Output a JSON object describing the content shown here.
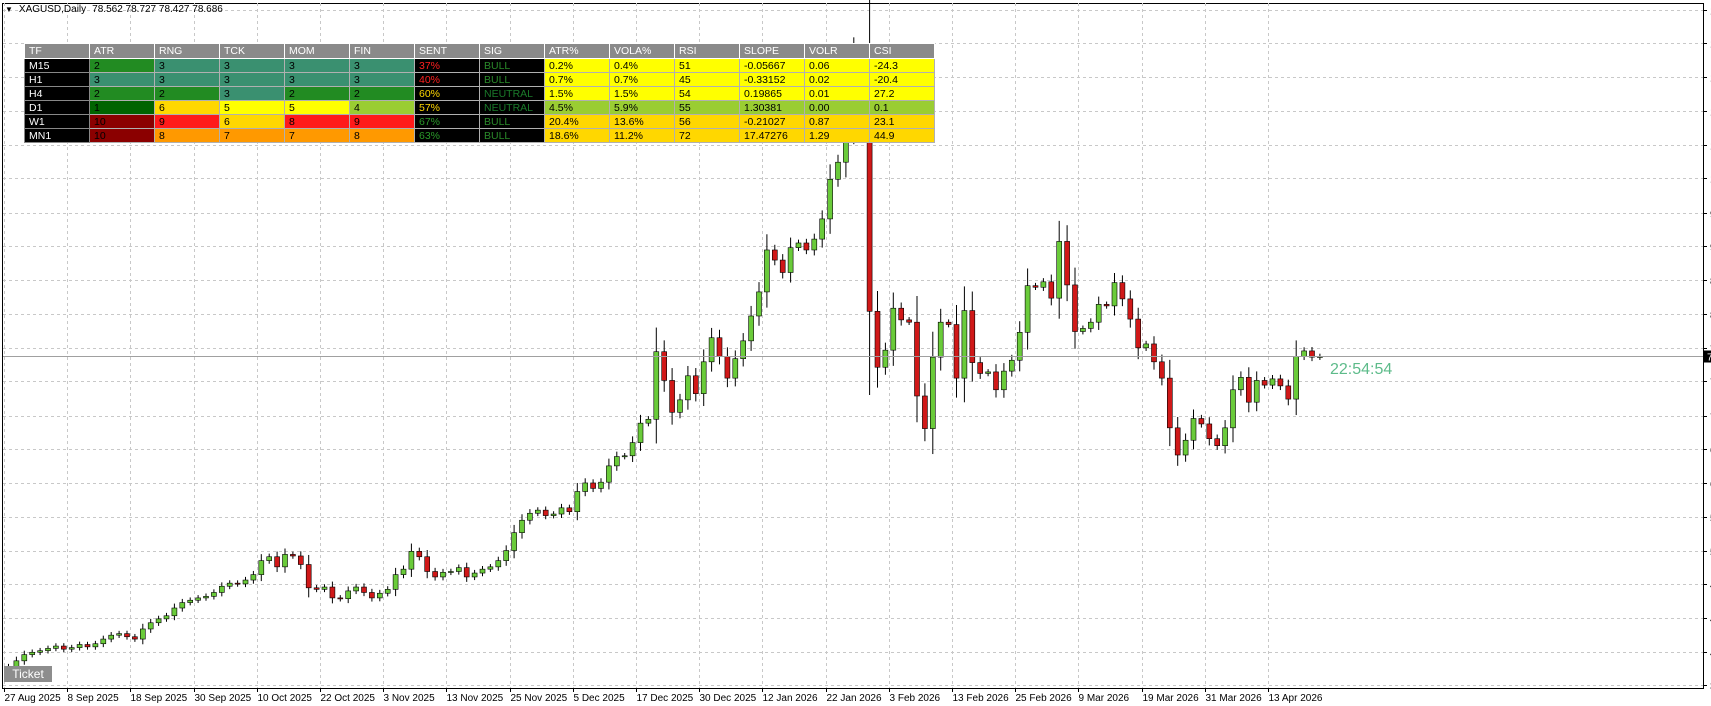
{
  "header": {
    "symbol": "XAGUSD,Daily",
    "ohlc": "78.562 78.727 78.427 78.686"
  },
  "timer": "22:54:54",
  "ticket_label": "Ticket",
  "colors": {
    "bull": "#6acb3a",
    "bear": "#d01818",
    "wick": "#000000",
    "grid": "#c8c8c8",
    "price_line": "#a0a0a0",
    "price_tag_bg": "#000000",
    "dark_green": "#006400",
    "green": "#1a8a1a",
    "teal": "#3a9070",
    "yellow": "#ffff00",
    "orange": "#ff9900",
    "red": "#ff1a1a",
    "dark_red": "#8b0000",
    "gold": "#ffd700",
    "olive": "#9acd32"
  },
  "indicator_table": {
    "headers": [
      "TF",
      "ATR",
      "RNG",
      "TCK",
      "MOM",
      "FIN",
      "SENT",
      "SIG",
      "ATR%",
      "VOLA%",
      "RSI",
      "SLOPE",
      "VOLR",
      "CSI"
    ],
    "rows": [
      {
        "cells": [
          "M15",
          "2",
          "3",
          "3",
          "3",
          "3",
          "37%",
          "BULL",
          "0.2%",
          "0.4%",
          "51",
          "-0.05667",
          "0.06",
          "-24.3"
        ],
        "bg": [
          "#000000",
          "#228b22",
          "#3a9070",
          "#3a9070",
          "#3a9070",
          "#3a9070",
          "#000000",
          "#000000",
          "#ffff00",
          "#ffff00",
          "#ffff00",
          "#ffff00",
          "#ffff00",
          "#ffff00"
        ],
        "fg": [
          "#ffffff",
          "#000000",
          "#000000",
          "#000000",
          "#000000",
          "#000000",
          "#ff2020",
          "#2a8a2a",
          "#000000",
          "#000000",
          "#000000",
          "#000000",
          "#000000",
          "#000000"
        ]
      },
      {
        "cells": [
          "H1",
          "3",
          "3",
          "3",
          "3",
          "3",
          "40%",
          "BULL",
          "0.7%",
          "0.7%",
          "45",
          "-0.33152",
          "0.02",
          "-20.4"
        ],
        "bg": [
          "#000000",
          "#3a9070",
          "#3a9070",
          "#3a9070",
          "#3a9070",
          "#3a9070",
          "#000000",
          "#000000",
          "#ffff00",
          "#ffff00",
          "#ffff00",
          "#ffff00",
          "#ffff00",
          "#ffff00"
        ],
        "fg": [
          "#ffffff",
          "#000000",
          "#000000",
          "#000000",
          "#000000",
          "#000000",
          "#ff2020",
          "#2a8a2a",
          "#000000",
          "#000000",
          "#000000",
          "#000000",
          "#000000",
          "#000000"
        ]
      },
      {
        "cells": [
          "H4",
          "2",
          "2",
          "3",
          "2",
          "2",
          "60%",
          "NEUTRAL",
          "1.5%",
          "1.5%",
          "54",
          "0.19865",
          "0.01",
          "27.2"
        ],
        "bg": [
          "#000000",
          "#228b22",
          "#228b22",
          "#3a9070",
          "#228b22",
          "#228b22",
          "#000000",
          "#000000",
          "#ffff00",
          "#ffff00",
          "#ffff00",
          "#ffff00",
          "#ffff00",
          "#ffff00"
        ],
        "fg": [
          "#ffffff",
          "#000000",
          "#000000",
          "#000000",
          "#000000",
          "#000000",
          "#ffd700",
          "#1a7a2a",
          "#000000",
          "#000000",
          "#000000",
          "#000000",
          "#000000",
          "#000000"
        ]
      },
      {
        "cells": [
          "D1",
          "1",
          "6",
          "5",
          "5",
          "4",
          "57%",
          "NEUTRAL",
          "4.5%",
          "5.9%",
          "55",
          "1.30381",
          "0.00",
          "0.1"
        ],
        "bg": [
          "#000000",
          "#006400",
          "#ffd700",
          "#ffff00",
          "#ffff00",
          "#9acd32",
          "#000000",
          "#000000",
          "#9acd32",
          "#9acd32",
          "#9acd32",
          "#9acd32",
          "#9acd32",
          "#9acd32"
        ],
        "fg": [
          "#ffffff",
          "#000000",
          "#000000",
          "#000000",
          "#000000",
          "#000000",
          "#ffd700",
          "#1a7a2a",
          "#000000",
          "#000000",
          "#000000",
          "#000000",
          "#000000",
          "#000000"
        ]
      },
      {
        "cells": [
          "W1",
          "10",
          "9",
          "6",
          "8",
          "9",
          "67%",
          "BULL",
          "20.4%",
          "13.6%",
          "56",
          "-0.21027",
          "0.87",
          "23.1"
        ],
        "bg": [
          "#000000",
          "#8b0000",
          "#ff1a1a",
          "#ffd700",
          "#ff1a1a",
          "#ff1a1a",
          "#000000",
          "#000000",
          "#ffd700",
          "#ffd700",
          "#ffd700",
          "#ffd700",
          "#ffd700",
          "#ffd700"
        ],
        "fg": [
          "#ffffff",
          "#000000",
          "#000000",
          "#000000",
          "#000000",
          "#000000",
          "#2a9a2a",
          "#2a8a2a",
          "#000000",
          "#000000",
          "#000000",
          "#000000",
          "#000000",
          "#000000"
        ]
      },
      {
        "cells": [
          "MN1",
          "10",
          "8",
          "7",
          "7",
          "8",
          "63%",
          "BULL",
          "18.6%",
          "11.2%",
          "72",
          "17.47276",
          "1.29",
          "44.9"
        ],
        "bg": [
          "#000000",
          "#8b0000",
          "#ff9900",
          "#ff9900",
          "#ff9900",
          "#ff9900",
          "#000000",
          "#000000",
          "#ffd700",
          "#ffd700",
          "#ffd700",
          "#ffd700",
          "#ffd700",
          "#ffd700"
        ],
        "fg": [
          "#ffffff",
          "#000000",
          "#000000",
          "#000000",
          "#000000",
          "#000000",
          "#2a9a2a",
          "#2a8a2a",
          "#000000",
          "#000000",
          "#000000",
          "#000000",
          "#000000",
          "#000000"
        ]
      }
    ]
  },
  "chart_data": {
    "type": "candlestick",
    "symbol": "XAGUSD",
    "timeframe": "Daily",
    "y_ticks": [
      123.34,
      119.05,
      114.63,
      110.34,
      105.92,
      101.63,
      97.21,
      92.92,
      88.5,
      84.21,
      79.79,
      75.5,
      71.08,
      66.79,
      62.37,
      58.08,
      53.66,
      49.37,
      44.95,
      40.66,
      36.37
    ],
    "y_tick_labels": [
      "123.340",
      "119.050",
      "114.630",
      "110.340",
      "105.920",
      "101.630",
      "97.210",
      "92.920",
      "88.500",
      "84.210",
      "79.790",
      "75.500",
      "71.080",
      "66.790",
      "62.370",
      "58.080",
      "53.660",
      "49.370",
      "44.950",
      "40.660",
      "36.370"
    ],
    "ylim": [
      36.0,
      124.2
    ],
    "x_labels": [
      {
        "label": "27 Aug 2025",
        "index": 0
      },
      {
        "label": "8 Sep 2025",
        "index": 8
      },
      {
        "label": "18 Sep 2025",
        "index": 16
      },
      {
        "label": "30 Sep 2025",
        "index": 24
      },
      {
        "label": "10 Oct 2025",
        "index": 32
      },
      {
        "label": "22 Oct 2025",
        "index": 40
      },
      {
        "label": "3 Nov 2025",
        "index": 48
      },
      {
        "label": "13 Nov 2025",
        "index": 56
      },
      {
        "label": "25 Nov 2025",
        "index": 64
      },
      {
        "label": "5 Dec 2025",
        "index": 72
      },
      {
        "label": "17 Dec 2025",
        "index": 80
      },
      {
        "label": "30 Dec 2025",
        "index": 88
      },
      {
        "label": "12 Jan 2026",
        "index": 96
      },
      {
        "label": "22 Jan 2026",
        "index": 104
      },
      {
        "label": "3 Feb 2026",
        "index": 112
      },
      {
        "label": "13 Feb 2026",
        "index": 120
      },
      {
        "label": "25 Feb 2026",
        "index": 128
      },
      {
        "label": "9 Mar 2026",
        "index": 136
      },
      {
        "label": "19 Mar 2026",
        "index": 144
      },
      {
        "label": "31 Mar 2026",
        "index": 152
      },
      {
        "label": "13 Apr 2026",
        "index": 160
      }
    ],
    "current_price": 78.686,
    "current_price_label": "78.686",
    "close": [
      38.6,
      39.5,
      40.3,
      40.6,
      40.8,
      41.1,
      41.4,
      41.0,
      41.2,
      41.6,
      41.3,
      41.7,
      42.3,
      42.8,
      43.0,
      42.6,
      42.3,
      43.6,
      44.4,
      44.9,
      45.3,
      46.3,
      47.0,
      47.3,
      47.6,
      47.8,
      48.3,
      49.1,
      49.5,
      49.4,
      49.9,
      50.6,
      52.4,
      52.9,
      51.6,
      53.2,
      53.0,
      51.9,
      48.9,
      48.7,
      49.0,
      47.6,
      47.5,
      48.5,
      49.0,
      48.3,
      47.6,
      48.2,
      48.7,
      50.6,
      51.3,
      53.6,
      52.9,
      51.0,
      50.3,
      50.9,
      51.0,
      51.5,
      50.3,
      50.8,
      51.3,
      51.6,
      52.4,
      53.7,
      56.0,
      57.6,
      58.5,
      58.9,
      58.2,
      58.4,
      59.2,
      58.7,
      61.3,
      62.4,
      61.7,
      62.5,
      64.6,
      65.8,
      65.9,
      67.6,
      70.1,
      70.6,
      79.3,
      75.6,
      71.5,
      73.1,
      76.2,
      73.9,
      78.0,
      81.1,
      78.7,
      75.9,
      78.4,
      80.7,
      83.9,
      87.0,
      92.4,
      91.1,
      89.5,
      92.7,
      93.3,
      92.4,
      93.8,
      96.4,
      101.5,
      103.7,
      108.9,
      116.9,
      116.4,
      84.5,
      77.3,
      79.5,
      84.9,
      83.4,
      83.1,
      73.6,
      69.4,
      78.6,
      83.1,
      82.8,
      75.9,
      84.6,
      77.9,
      76.5,
      76.7,
      74.4,
      76.8,
      78.2,
      81.8,
      87.8,
      87.6,
      88.3,
      86.2,
      93.5,
      87.9,
      81.9,
      82.3,
      83.1,
      85.4,
      85.2,
      88.2,
      86.1,
      83.5,
      79.8,
      80.3,
      78.0,
      75.9,
      69.5,
      66.0,
      67.9,
      70.7,
      70.0,
      68.1,
      67.2,
      69.5,
      74.4,
      76.0,
      72.8,
      75.6,
      75.0,
      75.8,
      74.9,
      73.2,
      78.7,
      79.4,
      78.6,
      78.686
    ],
    "ohlc_note": "approximate daily candles read from chart; open = previous close"
  }
}
